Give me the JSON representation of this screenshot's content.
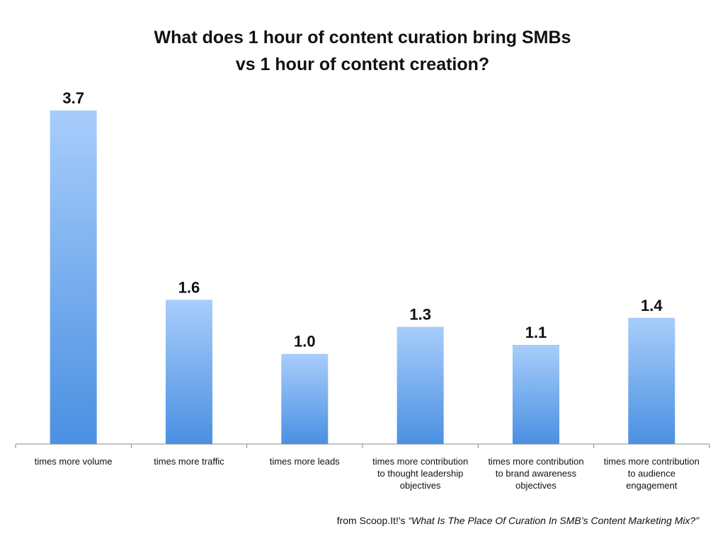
{
  "chart_data": {
    "type": "bar",
    "title_line1": "What does 1 hour of content curation bring SMBs",
    "title_line2": "vs 1 hour of content creation?",
    "categories": [
      [
        "times more volume"
      ],
      [
        "times more traffic"
      ],
      [
        "times more leads"
      ],
      [
        "times more contribution",
        "to thought leadership",
        "objectives"
      ],
      [
        "times more contribution",
        "to brand awareness",
        "objectives"
      ],
      [
        "times more contribution",
        "to audience",
        "engagement"
      ]
    ],
    "values": [
      3.7,
      1.6,
      1.0,
      1.3,
      1.1,
      1.4
    ],
    "value_labels": [
      "3.7",
      "1.6",
      "1.0",
      "1.3",
      "1.1",
      "1.4"
    ],
    "ylim": [
      0,
      3.7
    ],
    "grid": false,
    "bar_color_top": "#a8cdfb",
    "bar_color_bottom": "#4a90e2"
  },
  "source": {
    "prefix": "from Scoop.It!'s ",
    "title": "“What Is The Place Of Curation In SMB’s Content Marketing Mix?”"
  }
}
